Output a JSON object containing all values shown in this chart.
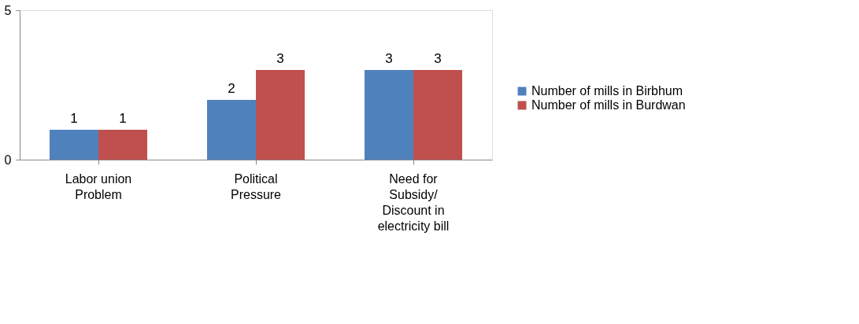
{
  "chart_data": {
    "type": "bar",
    "categories": [
      "Labor union\nProblem",
      "Political\nPressure",
      "Need for\nSubsidy/\nDiscount in\nelectricity bill"
    ],
    "series": [
      {
        "name": "Number of mills in Birbhum",
        "color": "#4f81bd",
        "values": [
          1,
          2,
          3
        ]
      },
      {
        "name": "Number of mills in Burdwan",
        "color": "#c0504d",
        "values": [
          1,
          3,
          3
        ]
      }
    ],
    "ylim": [
      0,
      5
    ],
    "yticks": [
      0,
      5
    ],
    "legend": "right",
    "data_labels": true
  }
}
